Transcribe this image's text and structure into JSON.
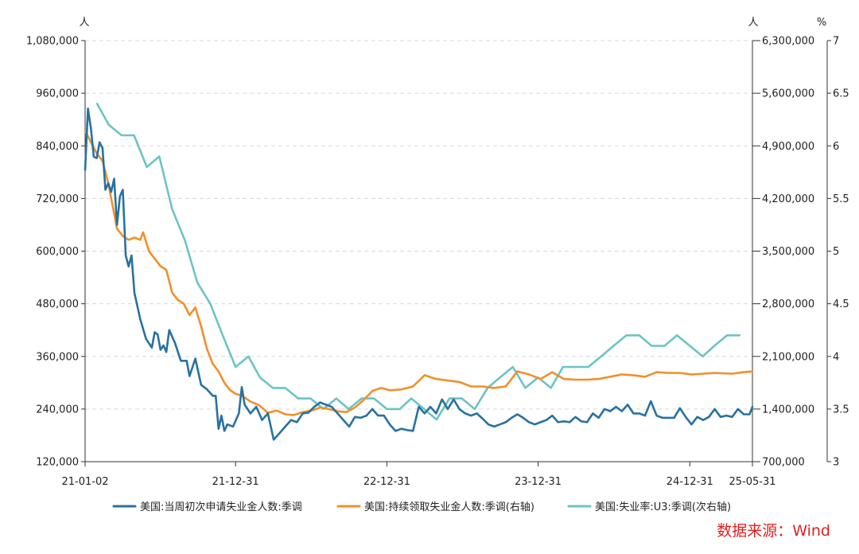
{
  "chart_data": {
    "type": "line",
    "units": {
      "left": "人",
      "right": "人",
      "right2": "%"
    },
    "x_axis": {
      "range": [
        "2021-01-02",
        "2025-05-31"
      ],
      "tick_labels": [
        "21-01-02",
        "21-12-31",
        "22-12-31",
        "23-12-31",
        "24-12-31",
        "25-05-31"
      ]
    },
    "y_axes": {
      "left": {
        "range": [
          120000,
          1080000
        ],
        "ticks": [
          "120,000",
          "240,000",
          "360,000",
          "480,000",
          "600,000",
          "720,000",
          "840,000",
          "960,000",
          "1,080,000"
        ]
      },
      "right": {
        "range": [
          700000,
          6300000
        ],
        "ticks": [
          "700,000",
          "1,400,000",
          "2,100,000",
          "2,800,000",
          "3,500,000",
          "4,200,000",
          "4,900,000",
          "5,600,000",
          "6,300,000"
        ]
      },
      "right2": {
        "range": [
          3,
          7
        ],
        "ticks": [
          "3",
          "3.5",
          "4",
          "4.5",
          "5",
          "5.5",
          "6",
          "6.5",
          "7"
        ]
      }
    },
    "grid": true,
    "legend_position": "bottom",
    "series": [
      {
        "name": "美国:当周初次申请失业金人数:季调",
        "axis": "left",
        "color": "#2872a0",
        "points": [
          [
            "2021-01-02",
            785000
          ],
          [
            "2021-01-09",
            925000
          ],
          [
            "2021-01-16",
            880000
          ],
          [
            "2021-01-23",
            815000
          ],
          [
            "2021-01-30",
            812000
          ],
          [
            "2021-02-06",
            848000
          ],
          [
            "2021-02-13",
            835000
          ],
          [
            "2021-02-20",
            740000
          ],
          [
            "2021-02-27",
            755000
          ],
          [
            "2021-03-06",
            735000
          ],
          [
            "2021-03-13",
            765000
          ],
          [
            "2021-03-20",
            660000
          ],
          [
            "2021-03-27",
            725000
          ],
          [
            "2021-04-03",
            740000
          ],
          [
            "2021-04-10",
            590000
          ],
          [
            "2021-04-17",
            565000
          ],
          [
            "2021-04-24",
            590000
          ],
          [
            "2021-05-01",
            505000
          ],
          [
            "2021-05-15",
            445000
          ],
          [
            "2021-05-29",
            400000
          ],
          [
            "2021-06-12",
            380000
          ],
          [
            "2021-06-19",
            415000
          ],
          [
            "2021-06-26",
            410000
          ],
          [
            "2021-07-03",
            375000
          ],
          [
            "2021-07-10",
            385000
          ],
          [
            "2021-07-17",
            370000
          ],
          [
            "2021-07-24",
            420000
          ],
          [
            "2021-08-07",
            390000
          ],
          [
            "2021-08-21",
            350000
          ],
          [
            "2021-09-04",
            350000
          ],
          [
            "2021-09-11",
            315000
          ],
          [
            "2021-09-25",
            355000
          ],
          [
            "2021-10-09",
            295000
          ],
          [
            "2021-10-23",
            285000
          ],
          [
            "2021-11-06",
            270000
          ],
          [
            "2021-11-13",
            270000
          ],
          [
            "2021-11-20",
            195000
          ],
          [
            "2021-11-27",
            225000
          ],
          [
            "2021-12-04",
            190000
          ],
          [
            "2021-12-11",
            205000
          ],
          [
            "2021-12-25",
            200000
          ],
          [
            "2022-01-08",
            230000
          ],
          [
            "2022-01-15",
            290000
          ],
          [
            "2022-01-22",
            250000
          ],
          [
            "2022-02-05",
            230000
          ],
          [
            "2022-02-19",
            245000
          ],
          [
            "2022-03-05",
            215000
          ],
          [
            "2022-03-19",
            230000
          ],
          [
            "2022-04-02",
            170000
          ],
          [
            "2022-04-16",
            185000
          ],
          [
            "2022-04-30",
            200000
          ],
          [
            "2022-05-14",
            215000
          ],
          [
            "2022-05-28",
            210000
          ],
          [
            "2022-06-11",
            230000
          ],
          [
            "2022-06-25",
            232000
          ],
          [
            "2022-07-09",
            245000
          ],
          [
            "2022-07-23",
            255000
          ],
          [
            "2022-08-06",
            250000
          ],
          [
            "2022-08-20",
            245000
          ],
          [
            "2022-09-03",
            230000
          ],
          [
            "2022-09-17",
            215000
          ],
          [
            "2022-10-01",
            200000
          ],
          [
            "2022-10-15",
            222000
          ],
          [
            "2022-10-29",
            220000
          ],
          [
            "2022-11-12",
            225000
          ],
          [
            "2022-11-26",
            240000
          ],
          [
            "2022-12-10",
            225000
          ],
          [
            "2022-12-24",
            225000
          ],
          [
            "2023-01-07",
            205000
          ],
          [
            "2023-01-21",
            190000
          ],
          [
            "2023-02-04",
            195000
          ],
          [
            "2023-02-18",
            192000
          ],
          [
            "2023-03-04",
            190000
          ],
          [
            "2023-03-18",
            245000
          ],
          [
            "2023-04-01",
            230000
          ],
          [
            "2023-04-15",
            245000
          ],
          [
            "2023-04-29",
            230000
          ],
          [
            "2023-05-13",
            262000
          ],
          [
            "2023-05-27",
            240000
          ],
          [
            "2023-06-10",
            262000
          ],
          [
            "2023-06-24",
            240000
          ],
          [
            "2023-07-08",
            230000
          ],
          [
            "2023-07-22",
            225000
          ],
          [
            "2023-08-05",
            230000
          ],
          [
            "2023-08-19",
            218000
          ],
          [
            "2023-09-02",
            205000
          ],
          [
            "2023-09-16",
            200000
          ],
          [
            "2023-09-30",
            205000
          ],
          [
            "2023-10-14",
            210000
          ],
          [
            "2023-10-28",
            220000
          ],
          [
            "2023-11-11",
            228000
          ],
          [
            "2023-11-25",
            220000
          ],
          [
            "2023-12-09",
            210000
          ],
          [
            "2023-12-23",
            205000
          ],
          [
            "2024-01-06",
            210000
          ],
          [
            "2024-01-20",
            215000
          ],
          [
            "2024-02-03",
            225000
          ],
          [
            "2024-02-17",
            210000
          ],
          [
            "2024-03-02",
            212000
          ],
          [
            "2024-03-16",
            210000
          ],
          [
            "2024-03-30",
            222000
          ],
          [
            "2024-04-13",
            212000
          ],
          [
            "2024-04-27",
            210000
          ],
          [
            "2024-05-11",
            230000
          ],
          [
            "2024-05-25",
            220000
          ],
          [
            "2024-06-08",
            240000
          ],
          [
            "2024-06-22",
            235000
          ],
          [
            "2024-07-06",
            245000
          ],
          [
            "2024-07-20",
            235000
          ],
          [
            "2024-08-03",
            250000
          ],
          [
            "2024-08-17",
            230000
          ],
          [
            "2024-08-31",
            230000
          ],
          [
            "2024-09-14",
            225000
          ],
          [
            "2024-09-28",
            258000
          ],
          [
            "2024-10-12",
            225000
          ],
          [
            "2024-10-26",
            220000
          ],
          [
            "2024-11-09",
            220000
          ],
          [
            "2024-11-23",
            220000
          ],
          [
            "2024-12-07",
            242000
          ],
          [
            "2024-12-21",
            222000
          ],
          [
            "2025-01-04",
            205000
          ],
          [
            "2025-01-18",
            222000
          ],
          [
            "2025-02-01",
            215000
          ],
          [
            "2025-02-15",
            222000
          ],
          [
            "2025-03-01",
            240000
          ],
          [
            "2025-03-15",
            222000
          ],
          [
            "2025-03-29",
            225000
          ],
          [
            "2025-04-12",
            222000
          ],
          [
            "2025-04-26",
            240000
          ],
          [
            "2025-05-10",
            228000
          ],
          [
            "2025-05-24",
            228000
          ],
          [
            "2025-05-31",
            245000
          ]
        ]
      },
      {
        "name": "美国:持续领取失业金人数:季调(右轴)",
        "axis": "right",
        "color": "#f0902a",
        "points": [
          [
            "2021-01-02",
            5100000
          ],
          [
            "2021-01-16",
            4950000
          ],
          [
            "2021-01-30",
            4800000
          ],
          [
            "2021-02-13",
            4700000
          ],
          [
            "2021-02-27",
            4400000
          ],
          [
            "2021-03-13",
            4000000
          ],
          [
            "2021-03-20",
            3800000
          ],
          [
            "2021-04-03",
            3700000
          ],
          [
            "2021-04-17",
            3650000
          ],
          [
            "2021-05-01",
            3680000
          ],
          [
            "2021-05-15",
            3650000
          ],
          [
            "2021-05-22",
            3750000
          ],
          [
            "2021-06-05",
            3500000
          ],
          [
            "2021-06-19",
            3400000
          ],
          [
            "2021-07-03",
            3300000
          ],
          [
            "2021-07-17",
            3250000
          ],
          [
            "2021-07-31",
            2950000
          ],
          [
            "2021-08-14",
            2850000
          ],
          [
            "2021-08-28",
            2800000
          ],
          [
            "2021-09-11",
            2650000
          ],
          [
            "2021-09-25",
            2750000
          ],
          [
            "2021-10-09",
            2500000
          ],
          [
            "2021-10-23",
            2200000
          ],
          [
            "2021-11-06",
            2000000
          ],
          [
            "2021-11-20",
            1900000
          ],
          [
            "2021-12-04",
            1750000
          ],
          [
            "2021-12-18",
            1650000
          ],
          [
            "2022-01-01",
            1600000
          ],
          [
            "2022-01-15",
            1580000
          ],
          [
            "2022-02-05",
            1500000
          ],
          [
            "2022-02-26",
            1450000
          ],
          [
            "2022-03-19",
            1350000
          ],
          [
            "2022-04-09",
            1380000
          ],
          [
            "2022-04-30",
            1330000
          ],
          [
            "2022-05-21",
            1320000
          ],
          [
            "2022-06-11",
            1360000
          ],
          [
            "2022-07-02",
            1380000
          ],
          [
            "2022-07-23",
            1420000
          ],
          [
            "2022-08-13",
            1400000
          ],
          [
            "2022-09-03",
            1370000
          ],
          [
            "2022-09-24",
            1360000
          ],
          [
            "2022-10-15",
            1420000
          ],
          [
            "2022-11-05",
            1520000
          ],
          [
            "2022-11-26",
            1640000
          ],
          [
            "2022-12-17",
            1680000
          ],
          [
            "2023-01-07",
            1650000
          ],
          [
            "2023-02-04",
            1660000
          ],
          [
            "2023-03-04",
            1700000
          ],
          [
            "2023-04-01",
            1850000
          ],
          [
            "2023-04-29",
            1800000
          ],
          [
            "2023-05-27",
            1780000
          ],
          [
            "2023-06-24",
            1760000
          ],
          [
            "2023-07-22",
            1700000
          ],
          [
            "2023-08-19",
            1700000
          ],
          [
            "2023-09-16",
            1680000
          ],
          [
            "2023-10-14",
            1700000
          ],
          [
            "2023-11-11",
            1900000
          ],
          [
            "2023-12-09",
            1860000
          ],
          [
            "2024-01-06",
            1800000
          ],
          [
            "2024-02-03",
            1890000
          ],
          [
            "2024-03-02",
            1800000
          ],
          [
            "2024-03-30",
            1790000
          ],
          [
            "2024-04-27",
            1790000
          ],
          [
            "2024-05-25",
            1800000
          ],
          [
            "2024-06-22",
            1830000
          ],
          [
            "2024-07-20",
            1860000
          ],
          [
            "2024-08-17",
            1850000
          ],
          [
            "2024-09-14",
            1830000
          ],
          [
            "2024-10-12",
            1890000
          ],
          [
            "2024-11-09",
            1880000
          ],
          [
            "2024-12-07",
            1880000
          ],
          [
            "2025-01-04",
            1860000
          ],
          [
            "2025-02-01",
            1870000
          ],
          [
            "2025-03-01",
            1880000
          ],
          [
            "2025-04-12",
            1870000
          ],
          [
            "2025-05-10",
            1890000
          ],
          [
            "2025-05-31",
            1900000
          ]
        ]
      },
      {
        "name": "美国:失业率:U3:季调(次右轴)",
        "axis": "right2",
        "color": "#6cc4c4",
        "points": [
          [
            "2021-01-31",
            6.4
          ],
          [
            "2021-02-28",
            6.2
          ],
          [
            "2021-03-31",
            6.1
          ],
          [
            "2021-04-30",
            6.1
          ],
          [
            "2021-05-31",
            5.8
          ],
          [
            "2021-06-30",
            5.9
          ],
          [
            "2021-07-31",
            5.4
          ],
          [
            "2021-08-31",
            5.1
          ],
          [
            "2021-09-30",
            4.7
          ],
          [
            "2021-10-31",
            4.5
          ],
          [
            "2021-11-30",
            4.2
          ],
          [
            "2021-12-31",
            3.9
          ],
          [
            "2022-01-31",
            4.0
          ],
          [
            "2022-02-28",
            3.8
          ],
          [
            "2022-03-31",
            3.7
          ],
          [
            "2022-04-30",
            3.7
          ],
          [
            "2022-05-31",
            3.6
          ],
          [
            "2022-06-30",
            3.6
          ],
          [
            "2022-07-31",
            3.5
          ],
          [
            "2022-08-31",
            3.6
          ],
          [
            "2022-09-30",
            3.5
          ],
          [
            "2022-10-31",
            3.6
          ],
          [
            "2022-11-30",
            3.6
          ],
          [
            "2022-12-31",
            3.5
          ],
          [
            "2023-01-31",
            3.5
          ],
          [
            "2023-02-28",
            3.6
          ],
          [
            "2023-03-31",
            3.5
          ],
          [
            "2023-04-30",
            3.4
          ],
          [
            "2023-05-31",
            3.6
          ],
          [
            "2023-06-30",
            3.6
          ],
          [
            "2023-07-31",
            3.5
          ],
          [
            "2023-08-31",
            3.7
          ],
          [
            "2023-09-30",
            3.8
          ],
          [
            "2023-10-31",
            3.9
          ],
          [
            "2023-11-30",
            3.7
          ],
          [
            "2023-12-31",
            3.8
          ],
          [
            "2024-01-31",
            3.7
          ],
          [
            "2024-02-29",
            3.9
          ],
          [
            "2024-03-31",
            3.9
          ],
          [
            "2024-04-30",
            3.9
          ],
          [
            "2024-05-31",
            4.0
          ],
          [
            "2024-06-30",
            4.1
          ],
          [
            "2024-07-31",
            4.2
          ],
          [
            "2024-08-31",
            4.2
          ],
          [
            "2024-09-30",
            4.1
          ],
          [
            "2024-10-31",
            4.1
          ],
          [
            "2024-11-30",
            4.2
          ],
          [
            "2024-12-31",
            4.1
          ],
          [
            "2025-01-31",
            4.0
          ],
          [
            "2025-02-28",
            4.1
          ],
          [
            "2025-03-31",
            4.2
          ],
          [
            "2025-04-30",
            4.2
          ]
        ]
      }
    ]
  },
  "source_label": "数据来源：Wind"
}
